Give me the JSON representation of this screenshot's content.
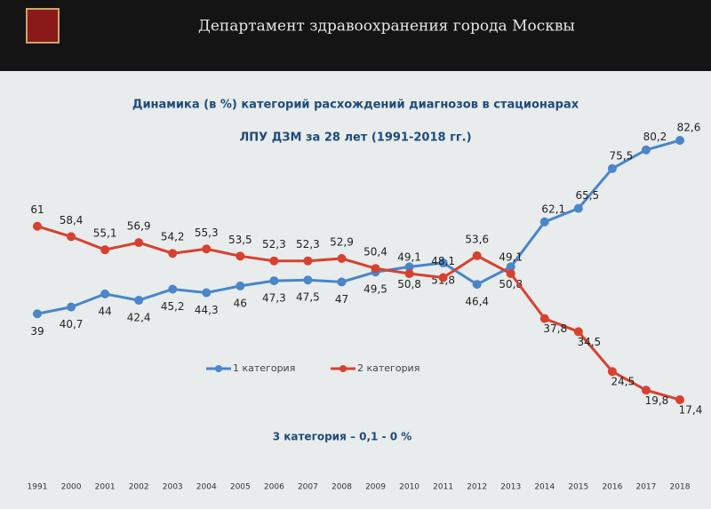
{
  "header": {
    "title": "Департамент здравоохранения города Москвы"
  },
  "chart_data": {
    "type": "line",
    "title": "Динамика (в %) категорий расхождений диагнозов в стационарах",
    "subtitle": "ЛПУ ДЗМ за 28 лет (1991-2018 гг.)",
    "annotation": "3 категория – 0,1 - 0 %",
    "categories": [
      "1991",
      "2000",
      "2001",
      "2002",
      "2003",
      "2004",
      "2005",
      "2006",
      "2007",
      "2008",
      "2009",
      "2010",
      "2011",
      "2012",
      "2013",
      "2014",
      "2015",
      "2016",
      "2017",
      "2018"
    ],
    "series": [
      {
        "name": "1 категория",
        "color": "#4a86c8",
        "values": [
          39,
          40.7,
          44,
          42.4,
          45.2,
          44.3,
          46,
          47.3,
          47.5,
          47,
          49.5,
          50.8,
          51.8,
          46.4,
          50.8,
          62.1,
          65.5,
          75.5,
          80.2,
          82.6
        ],
        "value_labels": [
          "39",
          "40,7",
          "44",
          "42,4",
          "45,2",
          "44,3",
          "46",
          "47,3",
          "47,5",
          "47",
          "49,5",
          "50,8",
          "51,8",
          "46,4",
          "50,8",
          "62,1",
          "65,5",
          "75,5",
          "80,2",
          "82,6"
        ]
      },
      {
        "name": "2 категория",
        "color": "#d8412f",
        "values": [
          61,
          58.4,
          55.1,
          56.9,
          54.2,
          55.3,
          53.5,
          52.3,
          52.3,
          52.9,
          50.4,
          49.1,
          48.1,
          53.6,
          49.1,
          37.8,
          34.5,
          24.5,
          19.8,
          17.4
        ],
        "value_labels": [
          "61",
          "58,4",
          "55,1",
          "56,9",
          "54,2",
          "55,3",
          "53,5",
          "52,3",
          "52,3",
          "52,9",
          "50,4",
          "49,1",
          "48,1",
          "53,6",
          "49,1",
          "37,8",
          "34,5",
          "24,5",
          "19,8",
          "17,4"
        ]
      }
    ],
    "legend": "bottom"
  }
}
